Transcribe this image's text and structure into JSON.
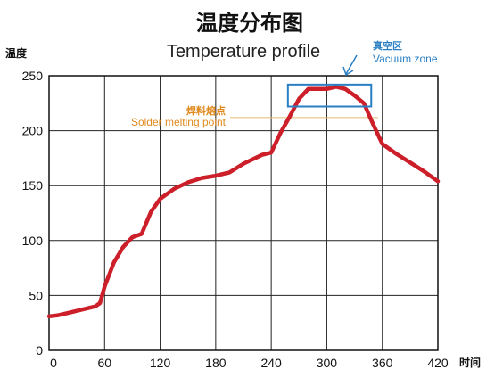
{
  "chart_data": {
    "type": "line",
    "title": "温度分布图",
    "subtitle": "Temperature profile",
    "xlabel": "时间",
    "ylabel": "温度",
    "xlim": [
      0,
      420
    ],
    "ylim": [
      0,
      250
    ],
    "xticks": [
      0,
      60,
      120,
      180,
      240,
      300,
      360,
      420
    ],
    "yticks": [
      0,
      50,
      100,
      150,
      200,
      250
    ],
    "grid": true,
    "series": [
      {
        "color": "#cc1f2a",
        "x": [
          0,
          10,
          25,
          40,
          50,
          55,
          60,
          70,
          80,
          90,
          100,
          110,
          120,
          135,
          150,
          165,
          180,
          195,
          210,
          230,
          240,
          250,
          260,
          270,
          280,
          290,
          300,
          310,
          320,
          330,
          340,
          350,
          360,
          375,
          390,
          405,
          420
        ],
        "y": [
          31,
          32,
          35,
          38,
          40,
          43,
          58,
          80,
          94,
          103,
          106,
          126,
          138,
          147,
          153,
          157,
          159,
          162,
          170,
          178,
          180,
          198,
          213,
          229,
          238,
          238,
          238,
          240,
          238,
          232,
          225,
          206,
          188,
          179,
          171,
          163,
          154
        ]
      }
    ],
    "annotations": {
      "melting_label_cn": "焊料熔点",
      "melting_label_en": "Solder melting point",
      "melting_point_y": 212,
      "melting_color": "#e08a1e",
      "vacuum_label_cn": "真空区",
      "vacuum_label_en": "Vacuum zone",
      "vacuum_x_range": [
        258,
        348
      ],
      "vacuum_y_range": [
        222,
        242
      ],
      "vacuum_color": "#2a7fc4"
    }
  }
}
